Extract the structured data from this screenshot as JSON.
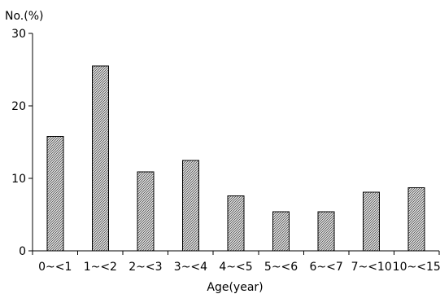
{
  "chart_data": {
    "type": "bar",
    "ylabel": "No.(%)",
    "xlabel": "Age(year)",
    "ylim": [
      0,
      30
    ],
    "yticks": [
      0,
      10,
      20,
      30
    ],
    "categories": [
      "0~<1",
      "1~<2",
      "2~<3",
      "3~<4",
      "4~<5",
      "5~<6",
      "6~<7",
      "7~<10",
      "10~<15"
    ],
    "values": [
      15.8,
      25.5,
      10.9,
      12.5,
      7.6,
      5.4,
      5.4,
      8.1,
      8.7
    ],
    "grid": false,
    "bar_fill": "hatched"
  }
}
